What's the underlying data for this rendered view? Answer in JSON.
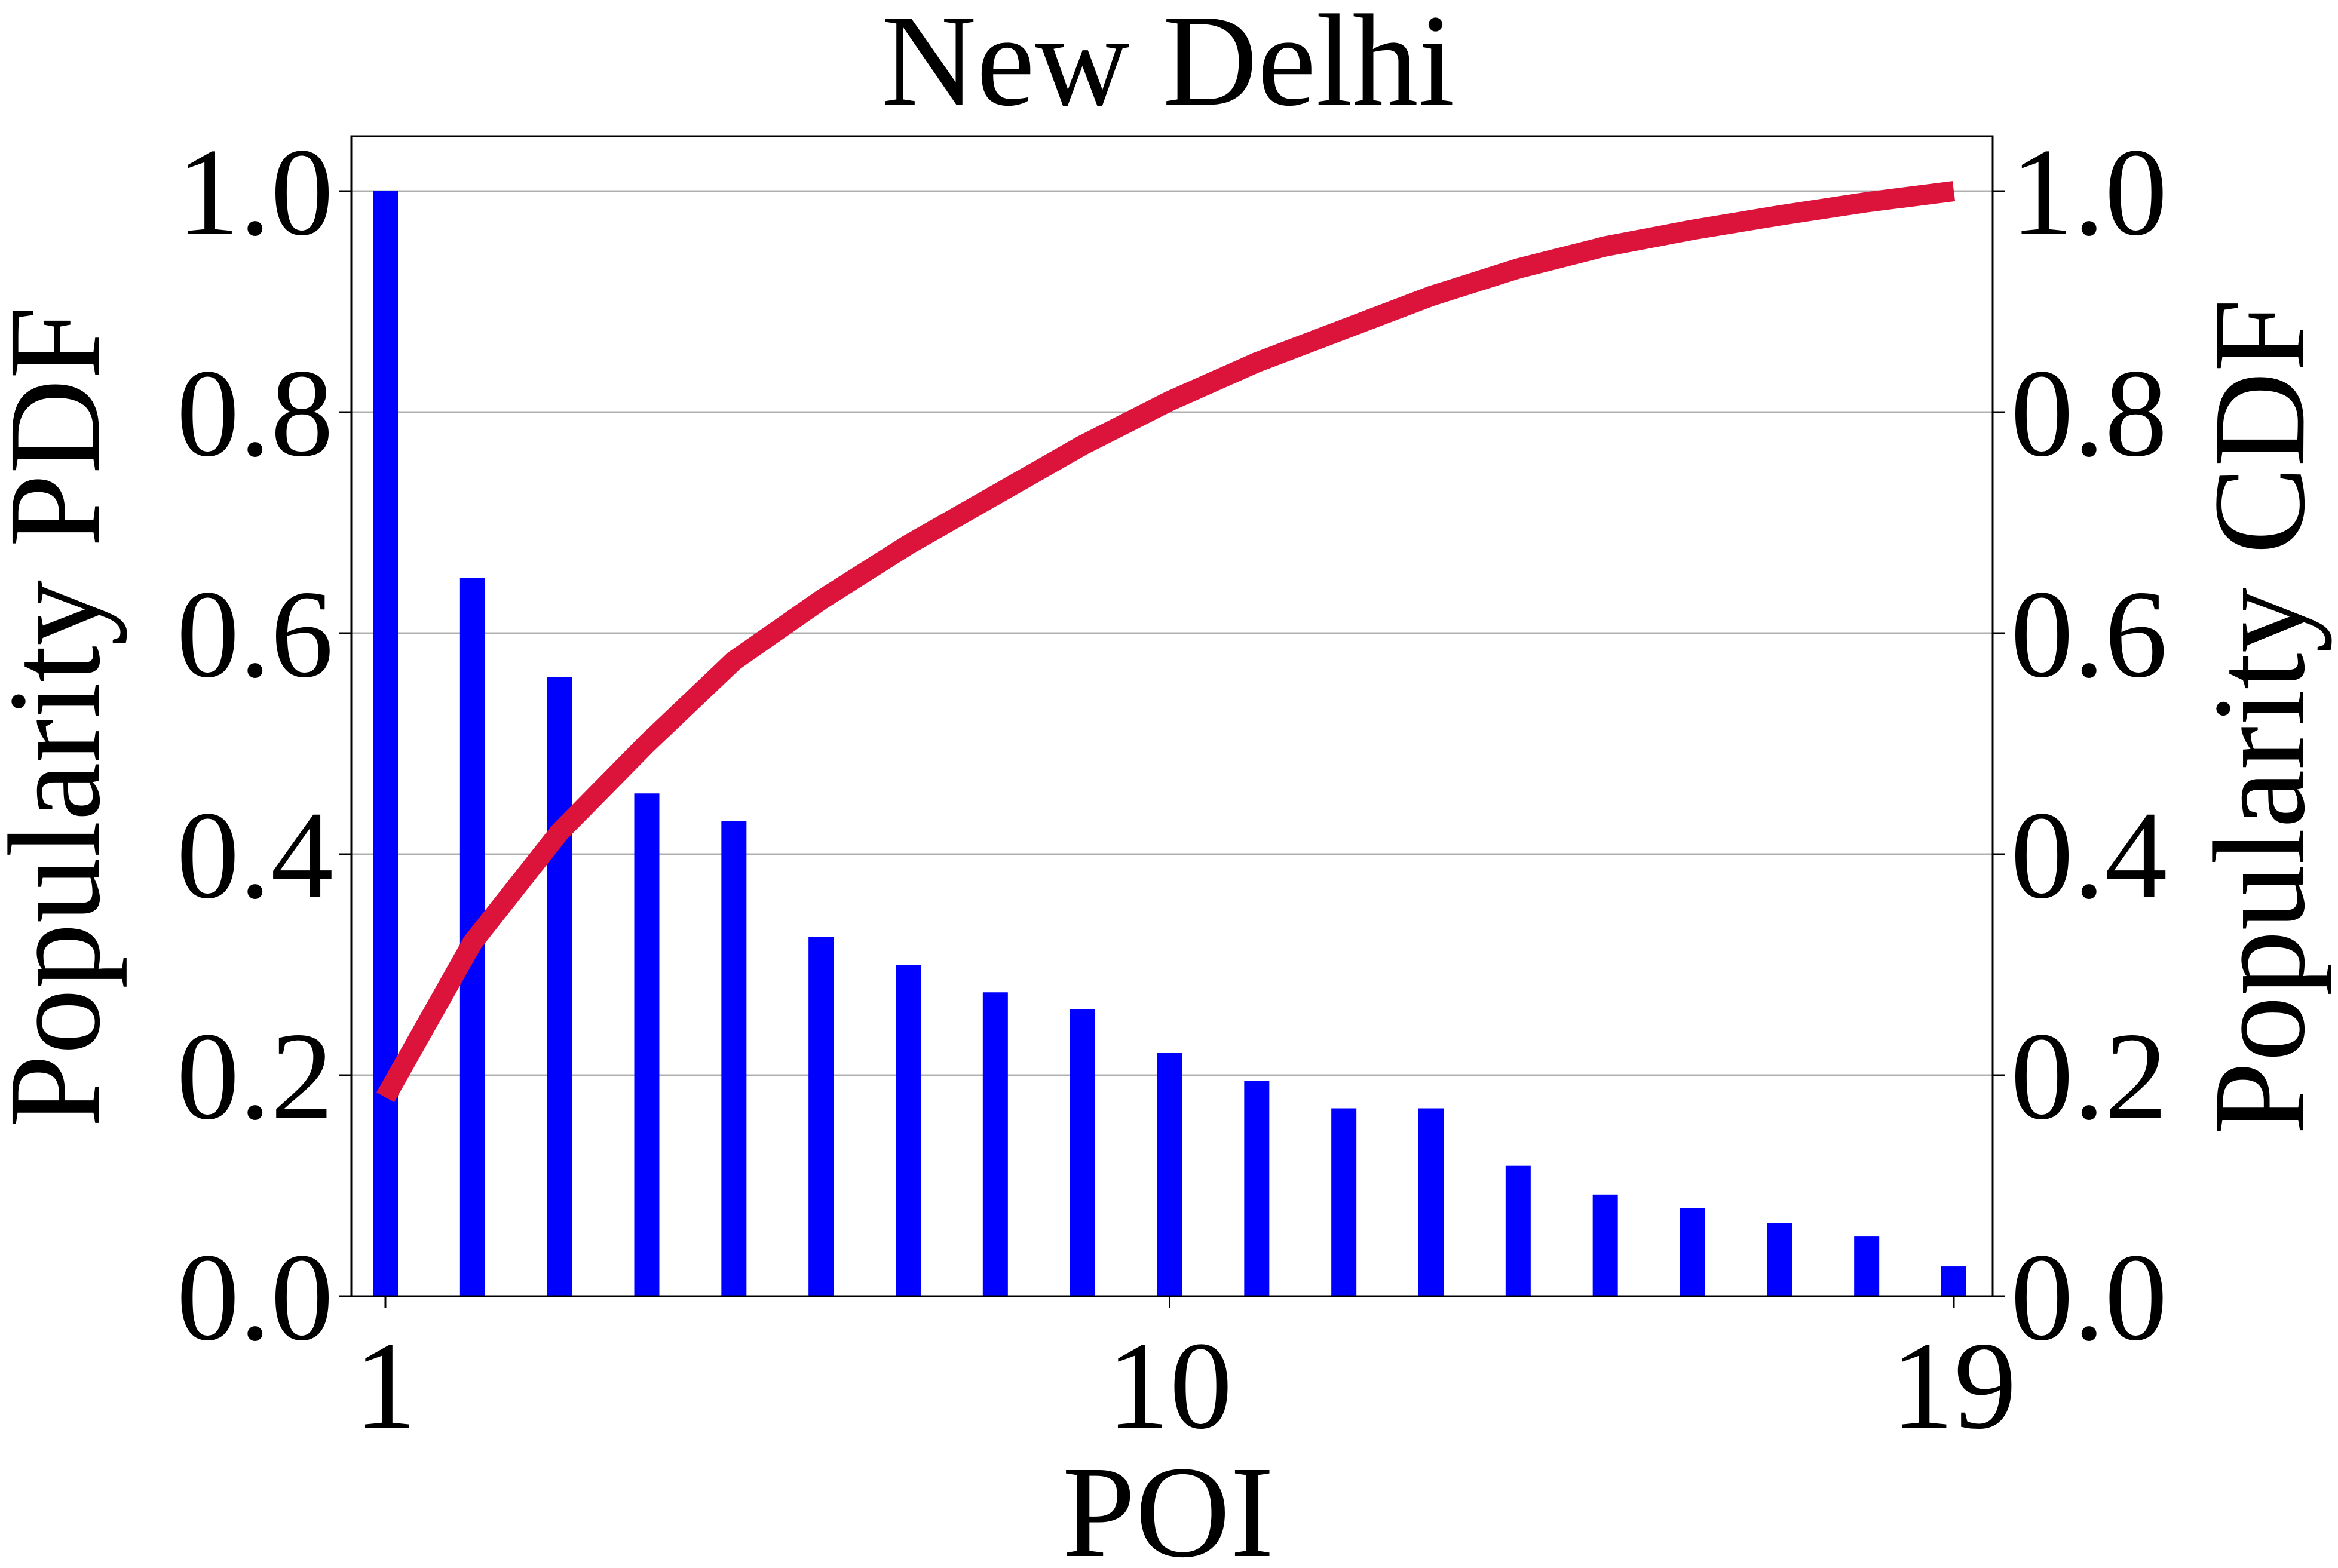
{
  "chart_data": {
    "type": "bar",
    "title": "New Delhi",
    "xlabel": "POI",
    "ylabel_left": "Popularity PDF",
    "ylabel_right": "Popularity CDF",
    "x_ticks": [
      "1",
      "10",
      "19"
    ],
    "y_ticks_left": [
      "0.0",
      "0.2",
      "0.4",
      "0.6",
      "0.8",
      "1.0"
    ],
    "y_ticks_right": [
      "0.0",
      "0.2",
      "0.4",
      "0.6",
      "0.8",
      "1.0"
    ],
    "ylim": [
      0,
      1.05
    ],
    "grid": "horizontal",
    "x": [
      1,
      2,
      3,
      4,
      5,
      6,
      7,
      8,
      9,
      10,
      11,
      12,
      13,
      14,
      15,
      16,
      17,
      18,
      19
    ],
    "pdf_values": [
      1.0,
      0.65,
      0.56,
      0.455,
      0.43,
      0.325,
      0.3,
      0.275,
      0.26,
      0.22,
      0.195,
      0.17,
      0.17,
      0.118,
      0.092,
      0.08,
      0.066,
      0.054,
      0.027
    ],
    "cdf_values": [
      0.18,
      0.32,
      0.42,
      0.5,
      0.575,
      0.63,
      0.68,
      0.725,
      0.77,
      0.81,
      0.845,
      0.875,
      0.905,
      0.93,
      0.95,
      0.965,
      0.978,
      0.99,
      1.0
    ],
    "colors": {
      "bars": "#0000ff",
      "line": "#dc143c",
      "grid": "#b0b0b0"
    }
  }
}
